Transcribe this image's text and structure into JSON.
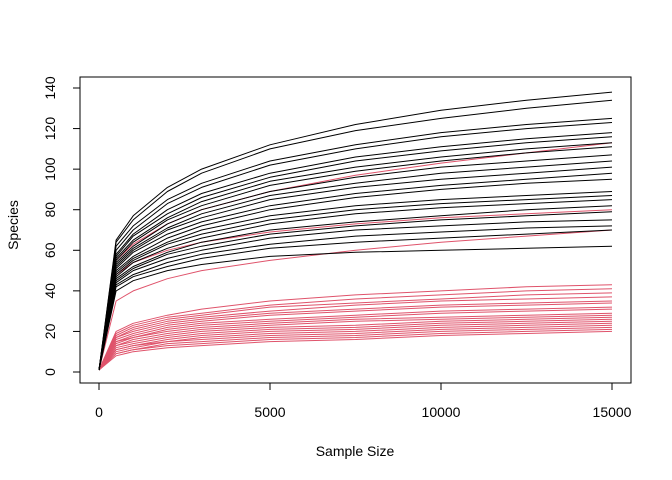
{
  "chart_data": {
    "type": "line",
    "title": "",
    "xlabel": "Sample Size",
    "ylabel": "Species",
    "xlim": [
      0,
      15000
    ],
    "ylim": [
      0,
      140
    ],
    "x_ticks": [
      0,
      5000,
      10000,
      15000
    ],
    "y_ticks": [
      0,
      20,
      40,
      60,
      80,
      100,
      120,
      140
    ],
    "grid": false,
    "legend": "none",
    "colors": {
      "group_a": "#000000",
      "group_b": "#DF536B"
    },
    "x": [
      0,
      500,
      1000,
      2000,
      3000,
      5000,
      7500,
      10000,
      12500,
      15000
    ],
    "series": [
      {
        "group": "group_a",
        "values": [
          1,
          65,
          77,
          91,
          100,
          112,
          122,
          129,
          134,
          138
        ]
      },
      {
        "group": "group_a",
        "values": [
          1,
          64,
          75,
          89,
          98,
          110,
          119,
          125,
          130,
          134
        ]
      },
      {
        "group": "group_a",
        "values": [
          1,
          62,
          72,
          85,
          93,
          104,
          112,
          118,
          122,
          125
        ]
      },
      {
        "group": "group_a",
        "values": [
          1,
          60,
          70,
          83,
          91,
          102,
          110,
          116,
          120,
          123
        ]
      },
      {
        "group": "group_a",
        "values": [
          1,
          58,
          68,
          80,
          88,
          98,
          106,
          111,
          115,
          118
        ]
      },
      {
        "group": "group_a",
        "values": [
          1,
          57,
          67,
          78,
          86,
          96,
          104,
          109,
          113,
          116
        ]
      },
      {
        "group": "group_a",
        "values": [
          1,
          56,
          65,
          76,
          84,
          94,
          101,
          106,
          110,
          113
        ]
      },
      {
        "group": "group_a",
        "values": [
          1,
          55,
          64,
          75,
          82,
          92,
          99,
          104,
          108,
          111
        ]
      },
      {
        "group": "group_a",
        "values": [
          1,
          54,
          62,
          73,
          80,
          89,
          96,
          101,
          104,
          107
        ]
      },
      {
        "group": "group_a",
        "values": [
          1,
          53,
          61,
          71,
          78,
          87,
          93,
          98,
          101,
          104
        ]
      },
      {
        "group": "group_a",
        "values": [
          1,
          52,
          60,
          70,
          76,
          85,
          91,
          95,
          98,
          101
        ]
      },
      {
        "group": "group_a",
        "values": [
          1,
          51,
          59,
          68,
          74,
          82,
          88,
          92,
          95,
          98
        ]
      },
      {
        "group": "group_a",
        "values": [
          1,
          50,
          57,
          66,
          72,
          80,
          86,
          90,
          93,
          95
        ]
      },
      {
        "group": "group_a",
        "values": [
          1,
          49,
          56,
          64,
          70,
          77,
          82,
          85,
          87,
          89
        ]
      },
      {
        "group": "group_a",
        "values": [
          1,
          48,
          55,
          63,
          68,
          75,
          80,
          83,
          85,
          87
        ]
      },
      {
        "group": "group_a",
        "values": [
          1,
          47,
          54,
          61,
          66,
          73,
          78,
          81,
          83,
          85
        ]
      },
      {
        "group": "group_a",
        "values": [
          1,
          46,
          52,
          59,
          64,
          70,
          74,
          77,
          80,
          82
        ]
      },
      {
        "group": "group_a",
        "values": [
          1,
          45,
          51,
          58,
          62,
          68,
          72,
          75,
          77,
          79
        ]
      },
      {
        "group": "group_a",
        "values": [
          1,
          44,
          50,
          56,
          60,
          66,
          70,
          72,
          74,
          75
        ]
      },
      {
        "group": "group_a",
        "values": [
          1,
          43,
          48,
          54,
          58,
          63,
          67,
          69,
          71,
          72
        ]
      },
      {
        "group": "group_a",
        "values": [
          1,
          42,
          47,
          52,
          56,
          61,
          64,
          66,
          68,
          70
        ]
      },
      {
        "group": "group_a",
        "values": [
          1,
          40,
          45,
          50,
          53,
          57,
          59,
          60,
          61,
          62
        ]
      },
      {
        "group": "group_b",
        "values": [
          1,
          55,
          63,
          73,
          80,
          89,
          97,
          103,
          108,
          113
        ]
      },
      {
        "group": "group_b",
        "values": [
          1,
          48,
          54,
          60,
          64,
          69,
          73,
          76,
          78,
          80
        ]
      },
      {
        "group": "group_b",
        "values": [
          1,
          35,
          40,
          46,
          50,
          55,
          60,
          64,
          67,
          70
        ]
      },
      {
        "group": "group_b",
        "values": [
          1,
          20,
          24,
          28,
          31,
          35,
          38,
          40,
          42,
          43
        ]
      },
      {
        "group": "group_b",
        "values": [
          1,
          19,
          23,
          27,
          29,
          33,
          36,
          38,
          40,
          41
        ]
      },
      {
        "group": "group_b",
        "values": [
          1,
          18,
          22,
          26,
          28,
          32,
          34,
          36,
          38,
          39
        ]
      },
      {
        "group": "group_b",
        "values": [
          1,
          17,
          21,
          25,
          27,
          30,
          33,
          35,
          36,
          37
        ]
      },
      {
        "group": "group_b",
        "values": [
          1,
          17,
          20,
          24,
          26,
          29,
          31,
          33,
          34,
          35
        ]
      },
      {
        "group": "group_b",
        "values": [
          1,
          16,
          19,
          23,
          25,
          28,
          30,
          32,
          33,
          34
        ]
      },
      {
        "group": "group_b",
        "values": [
          1,
          15,
          18,
          22,
          24,
          26,
          28,
          30,
          31,
          32
        ]
      },
      {
        "group": "group_b",
        "values": [
          1,
          15,
          17,
          21,
          23,
          25,
          27,
          29,
          30,
          31
        ]
      },
      {
        "group": "group_b",
        "values": [
          1,
          14,
          17,
          20,
          22,
          24,
          26,
          27,
          28,
          29
        ]
      },
      {
        "group": "group_b",
        "values": [
          1,
          13,
          16,
          19,
          21,
          23,
          25,
          26,
          27,
          28
        ]
      },
      {
        "group": "group_b",
        "values": [
          1,
          13,
          15,
          18,
          20,
          22,
          23,
          25,
          26,
          27
        ]
      },
      {
        "group": "group_b",
        "values": [
          1,
          12,
          14,
          17,
          19,
          21,
          22,
          24,
          25,
          26
        ]
      },
      {
        "group": "group_b",
        "values": [
          1,
          11,
          13,
          16,
          18,
          20,
          21,
          23,
          24,
          25
        ]
      },
      {
        "group": "group_b",
        "values": [
          1,
          11,
          13,
          15,
          17,
          19,
          20,
          22,
          23,
          24
        ]
      },
      {
        "group": "group_b",
        "values": [
          1,
          10,
          12,
          15,
          16,
          18,
          19,
          21,
          22,
          23
        ]
      },
      {
        "group": "group_b",
        "values": [
          1,
          9,
          11,
          14,
          15,
          17,
          18,
          20,
          21,
          22
        ]
      },
      {
        "group": "group_b",
        "values": [
          1,
          9,
          11,
          13,
          14,
          16,
          17,
          19,
          20,
          21
        ]
      },
      {
        "group": "group_b",
        "values": [
          1,
          8,
          10,
          12,
          13,
          15,
          16,
          18,
          19,
          20
        ]
      }
    ]
  }
}
